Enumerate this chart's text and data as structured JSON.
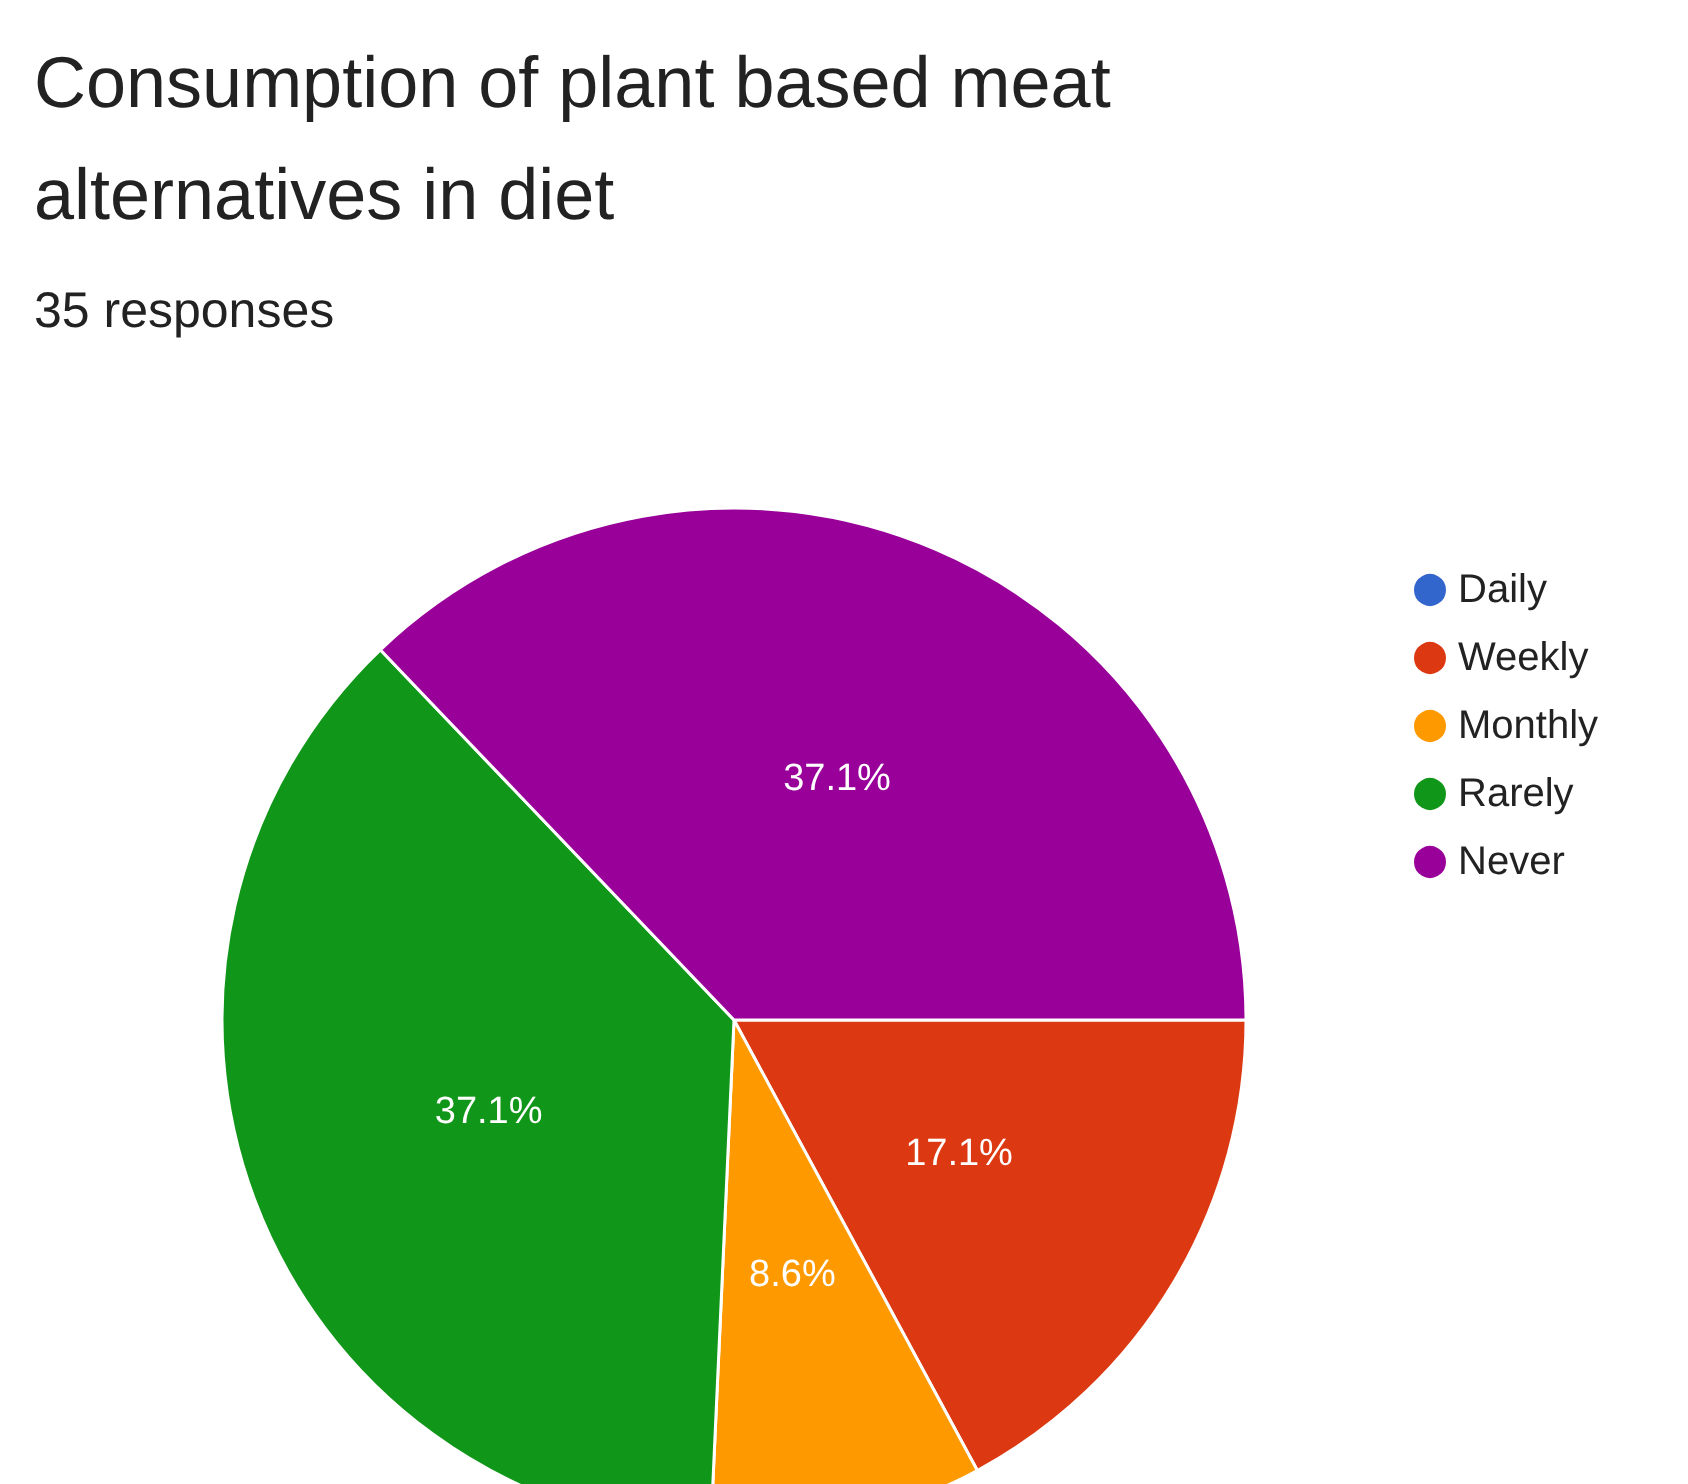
{
  "chart_data": {
    "type": "pie",
    "title": "Consumption of plant based meat alternatives in diet",
    "subtitle": "35 responses",
    "categories": [
      "Daily",
      "Weekly",
      "Monthly",
      "Rarely",
      "Never"
    ],
    "values": [
      0,
      17.1,
      8.6,
      37.1,
      37.1
    ],
    "colors": [
      "#3366cc",
      "#dc3912",
      "#ff9900",
      "#109618",
      "#990099"
    ],
    "value_labels": [
      null,
      "17.1%",
      "8.6%",
      "37.1%",
      "37.1%"
    ],
    "legend": "right"
  }
}
